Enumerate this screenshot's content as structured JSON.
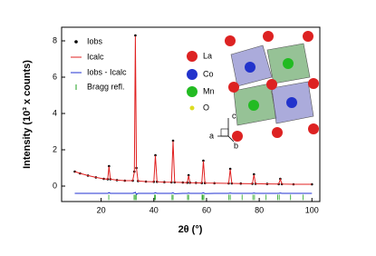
{
  "chart_data": {
    "type": "line",
    "x_label": "2θ (°)",
    "y_label": "Intensity (10³ x counts)",
    "xlim": [
      5,
      103
    ],
    "xticks": [
      20,
      40,
      60,
      80,
      100
    ],
    "ylim": [
      -0.85,
      8.75
    ],
    "yticks": [
      0,
      2,
      4,
      6,
      8
    ],
    "x": [
      10,
      12,
      15,
      18,
      21,
      22.5,
      23,
      23.5,
      26,
      29,
      32,
      32.6,
      33,
      33.4,
      34,
      37,
      40,
      40.6,
      41.2,
      44,
      46.7,
      47.3,
      47.9,
      51,
      52.7,
      53.2,
      53.7,
      56,
      58.2,
      58.8,
      59.4,
      63,
      68.4,
      69,
      69.6,
      73,
      77.4,
      78,
      78.6,
      83,
      87.4,
      88,
      88.6,
      93,
      100
    ],
    "series": [
      {
        "name": "Iobs",
        "color": "#000000",
        "style": "dots",
        "values": [
          0.8,
          0.7,
          0.58,
          0.48,
          0.4,
          0.38,
          1.1,
          0.38,
          0.33,
          0.3,
          0.3,
          0.8,
          8.3,
          1.0,
          0.28,
          0.25,
          0.24,
          1.7,
          0.24,
          0.22,
          0.21,
          2.5,
          0.21,
          0.2,
          0.19,
          0.6,
          0.19,
          0.18,
          0.17,
          1.4,
          0.17,
          0.16,
          0.15,
          0.95,
          0.15,
          0.14,
          0.13,
          0.65,
          0.13,
          0.12,
          0.11,
          0.4,
          0.11,
          0.1,
          0.1
        ]
      },
      {
        "name": "Icalc",
        "color": "#e02020",
        "style": "line",
        "values": [
          0.8,
          0.7,
          0.58,
          0.48,
          0.4,
          0.38,
          1.08,
          0.38,
          0.33,
          0.3,
          0.3,
          0.78,
          8.25,
          1.0,
          0.28,
          0.25,
          0.24,
          1.68,
          0.24,
          0.22,
          0.21,
          2.48,
          0.21,
          0.2,
          0.19,
          0.58,
          0.19,
          0.18,
          0.17,
          1.38,
          0.17,
          0.16,
          0.15,
          0.93,
          0.15,
          0.14,
          0.13,
          0.63,
          0.13,
          0.12,
          0.11,
          0.38,
          0.11,
          0.1,
          0.1
        ]
      },
      {
        "name": "Iobs - Icalc",
        "color": "#2030d0",
        "style": "line",
        "values": [
          -0.4,
          -0.4,
          -0.4,
          -0.4,
          -0.4,
          -0.4,
          -0.36,
          -0.4,
          -0.4,
          -0.4,
          -0.4,
          -0.37,
          -0.34,
          -0.46,
          -0.4,
          -0.4,
          -0.4,
          -0.37,
          -0.4,
          -0.4,
          -0.4,
          -0.37,
          -0.42,
          -0.4,
          -0.4,
          -0.38,
          -0.4,
          -0.4,
          -0.4,
          -0.37,
          -0.41,
          -0.4,
          -0.4,
          -0.38,
          -0.4,
          -0.4,
          -0.4,
          -0.38,
          -0.4,
          -0.4,
          -0.4,
          -0.38,
          -0.4,
          -0.4,
          -0.4
        ]
      }
    ],
    "bragg": {
      "name": "Bragg refl.",
      "color": "#20a020",
      "x": [
        22.9,
        32.5,
        32.9,
        33.3,
        40.3,
        40.6,
        46.9,
        47.3,
        52.8,
        53.2,
        58.3,
        58.6,
        59.0,
        68.5,
        69.0,
        73.5,
        77.6,
        78.2,
        82.6,
        87.0,
        87.6,
        91.9,
        96.6
      ],
      "values": [
        -0.62,
        -0.62,
        -0.62,
        -0.62,
        -0.62,
        -0.62,
        -0.62,
        -0.62,
        -0.62,
        -0.62,
        -0.62,
        -0.62,
        -0.62,
        -0.62,
        -0.62,
        -0.62,
        -0.62,
        -0.62,
        -0.62,
        -0.62,
        -0.62,
        -0.62,
        -0.62
      ]
    }
  },
  "inset": {
    "atoms": [
      "La",
      "Co",
      "Mn",
      "O"
    ],
    "axes": [
      "a",
      "b",
      "c"
    ]
  }
}
